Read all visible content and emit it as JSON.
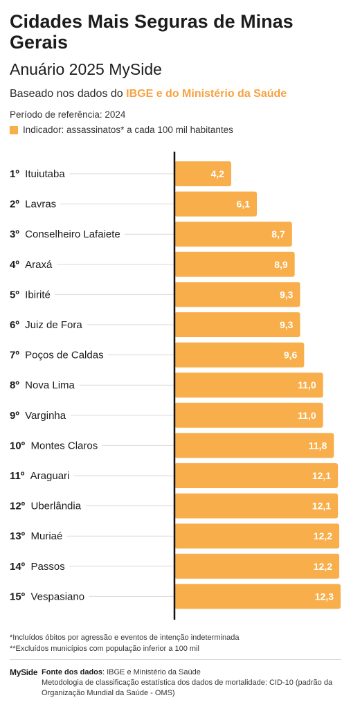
{
  "header": {
    "title": "Cidades Mais Seguras de Minas Gerais",
    "subtitle": "Anuário 2025 MySide",
    "based_prefix": "Baseado nos dados do ",
    "based_highlight": "IBGE e do Ministério da Saúde",
    "period": "Período de referência: 2024",
    "legend": "Indicador: assassinatos* a cada 100 mil habitantes"
  },
  "colors": {
    "bar": "#f8ae4b",
    "highlight_text": "#f7a13f",
    "axis": "#111111",
    "guide": "#d9d9d9"
  },
  "chart_data": {
    "type": "bar",
    "orientation": "horizontal",
    "title": "Cidades Mais Seguras de Minas Gerais",
    "ranks": [
      "1º",
      "2º",
      "3º",
      "4º",
      "5º",
      "6º",
      "7º",
      "8º",
      "9º",
      "10º",
      "11º",
      "12º",
      "13º",
      "14º",
      "15º"
    ],
    "categories": [
      "Ituiutaba",
      "Lavras",
      "Conselheiro Lafaiete",
      "Araxá",
      "Ibirité",
      "Juiz de Fora",
      "Poços de Caldas",
      "Nova Lima",
      "Varginha",
      "Montes Claros",
      "Araguari",
      "Uberlândia",
      "Muriaé",
      "Passos",
      "Vespasiano"
    ],
    "values": [
      4.2,
      6.1,
      8.7,
      8.9,
      9.3,
      9.3,
      9.6,
      11.0,
      11.0,
      11.8,
      12.1,
      12.1,
      12.2,
      12.2,
      12.3
    ],
    "value_labels": [
      "4,2",
      "6,1",
      "8,7",
      "8,9",
      "9,3",
      "9,3",
      "9,6",
      "11,0",
      "11,0",
      "11,8",
      "12,1",
      "12,1",
      "12,2",
      "12,2",
      "12,3"
    ],
    "xlim": [
      0,
      12.3
    ],
    "grid": false,
    "legend": "top-left"
  },
  "footnotes": {
    "note1": "*Incluídos óbitos por agressão e eventos de intenção indeterminada",
    "note2": "**Excluídos municípios com população inferior a 100 mil"
  },
  "footer": {
    "brand": "MySide",
    "source_label": "Fonte dos dados",
    "source_text": ": IBGE e Ministério da Saúde",
    "methodology": "Metodologia de classificação estatística dos dados de mortalidade: CID-10 (padrão da Organização Mundial da Saúde - OMS)"
  }
}
